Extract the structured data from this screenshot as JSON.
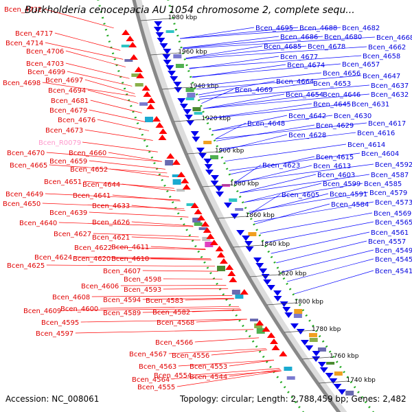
{
  "title": "Burkholderia cenocepacia AU 1054 chromosome 2, complete sequ...",
  "footer": {
    "accession": "Accession: NC_008061",
    "summary": "Topology: circular; Length: 2,788,459 bp; Genes: 2,482"
  },
  "colors": {
    "left_labels": "#e00000",
    "right_labels": "#0000dd",
    "pseudo_label": "#ff99cc",
    "backbone": "#888888",
    "gc_dots": "#22aa22"
  },
  "kbp_ticks": [
    "1980 kbp",
    "1960 kbp",
    "1940 kbp",
    "1920 kbp",
    "1900 kbp",
    "1880 kbp",
    "1860 kbp",
    "1840 kbp",
    "1820 kbp",
    "1800 kbp",
    "1780 kbp",
    "1760 kbp",
    "1740 kbp"
  ],
  "left_labels": [
    "Bcen_4732",
    "Bcen_4717",
    "Bcen_4714",
    "Bcen_4706",
    "Bcen_4703",
    "Bcen_4699",
    "Bcen_4697",
    "Bcen_4698",
    "Bcen_4694",
    "Bcen_4681",
    "Bcen_4679",
    "Bcen_4676",
    "Bcen_4673",
    "Bcen_R0079",
    "Bcen_4670",
    "Bcen_4660",
    "Bcen_4665",
    "Bcen_4659",
    "Bcen_4652",
    "Bcen_4651",
    "Bcen_4644",
    "Bcen_4649",
    "Bcen_4641",
    "Bcen_4650",
    "Bcen_4633",
    "Bcen_4639",
    "Bcen_4640",
    "Bcen_4626",
    "Bcen_4627",
    "Bcen_4621",
    "Bcen_4622",
    "Bcen_4611",
    "Bcen_4624",
    "Bcen_4620",
    "Bcen_4610",
    "Bcen_4625",
    "Bcen_4607",
    "Bcen_4598",
    "Bcen_4606",
    "Bcen_4593",
    "Bcen_4608",
    "Bcen_4594",
    "Bcen_4583",
    "Bcen_4600",
    "Bcen_4609",
    "Bcen_4589",
    "Bcen_4582",
    "Bcen_4595",
    "Bcen_4568",
    "Bcen_4597",
    "Bcen_4566",
    "Bcen_4567",
    "Bcen_4556",
    "Bcen_4563",
    "Bcen_4553",
    "Bcen_4554",
    "Bcen_4564",
    "Bcen_4544",
    "Bcen_4555"
  ],
  "right_labels": [
    "Bcen_4695",
    "Bcen_4688",
    "Bcen_4682",
    "Bcen_4686",
    "Bcen_4680",
    "Bcen_4668",
    "Bcen_4685",
    "Bcen_4678",
    "Bcen_4662",
    "Bcen_4677",
    "Bcen_4658",
    "Bcen_4674",
    "Bcen_4657",
    "Bcen_4656",
    "Bcen_4647",
    "Bcen_4664",
    "Bcen_4653",
    "Bcen_4637",
    "Bcen_4669",
    "Bcen_4654",
    "Bcen_4646",
    "Bcen_4632",
    "Bcen_4645",
    "Bcen_4631",
    "Bcen_4642",
    "Bcen_4630",
    "Bcen_4648",
    "Bcen_4629",
    "Bcen_4617",
    "Bcen_4628",
    "Bcen_4616",
    "Bcen_4614",
    "Bcen_4615",
    "Bcen_4604",
    "Bcen_4623",
    "Bcen_4613",
    "Bcen_4592",
    "Bcen_4603",
    "Bcen_4587",
    "Bcen_4599",
    "Bcen_4585",
    "Bcen_4605",
    "Bcen_4591",
    "Bcen_4579",
    "Bcen_4584",
    "Bcen_4573",
    "Bcen_4569",
    "Bcen_4565",
    "Bcen_4561",
    "Bcen_4557",
    "Bcen_4549",
    "Bcen_4545",
    "Bcen_4541"
  ]
}
